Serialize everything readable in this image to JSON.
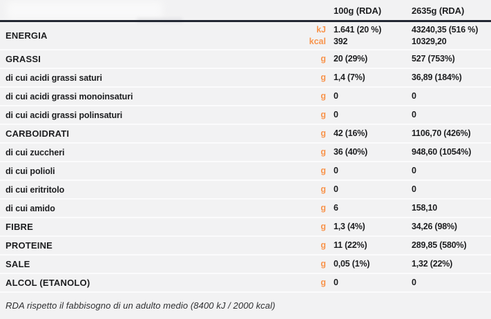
{
  "colors": {
    "background": "#f2f2f3",
    "accent_orange": "#f8954e",
    "header_rule": "#232833",
    "row_separator": "#fbfbfc",
    "text": "#1d1e20"
  },
  "header": {
    "columns": [
      "100g (RDA)",
      "2635g (RDA)"
    ]
  },
  "rows": [
    {
      "label": "ENERGIA",
      "category": true,
      "lines": [
        {
          "unit": "kJ",
          "per100": "1.641 (20 %)",
          "per2635": "43240,35 (516 %)"
        },
        {
          "unit": "kcal",
          "per100": "392",
          "per2635": "10329,20"
        }
      ]
    },
    {
      "label": "GRASSI",
      "category": true,
      "lines": [
        {
          "unit": "g",
          "per100": "20 (29%)",
          "per2635": "527 (753%)"
        }
      ]
    },
    {
      "label": "di cui acidi grassi saturi",
      "category": false,
      "lines": [
        {
          "unit": "g",
          "per100": "1,4 (7%)",
          "per2635": "36,89 (184%)"
        }
      ]
    },
    {
      "label": "di cui acidi grassi monoinsaturi",
      "category": false,
      "lines": [
        {
          "unit": "g",
          "per100": "0",
          "per2635": "0"
        }
      ]
    },
    {
      "label": "di cui acidi grassi polinsaturi",
      "category": false,
      "lines": [
        {
          "unit": "g",
          "per100": "0",
          "per2635": "0"
        }
      ]
    },
    {
      "label": "CARBOIDRATI",
      "category": true,
      "lines": [
        {
          "unit": "g",
          "per100": "42 (16%)",
          "per2635": "1106,70 (426%)"
        }
      ]
    },
    {
      "label": "di cui zuccheri",
      "category": false,
      "lines": [
        {
          "unit": "g",
          "per100": "36 (40%)",
          "per2635": "948,60 (1054%)"
        }
      ]
    },
    {
      "label": "di cui polioli",
      "category": false,
      "lines": [
        {
          "unit": "g",
          "per100": "0",
          "per2635": "0"
        }
      ]
    },
    {
      "label": "di cui eritritolo",
      "category": false,
      "lines": [
        {
          "unit": "g",
          "per100": "0",
          "per2635": "0"
        }
      ]
    },
    {
      "label": "di cui amido",
      "category": false,
      "lines": [
        {
          "unit": "g",
          "per100": "6",
          "per2635": "158,10"
        }
      ]
    },
    {
      "label": "FIBRE",
      "category": true,
      "lines": [
        {
          "unit": "g",
          "per100": "1,3 (4%)",
          "per2635": "34,26 (98%)"
        }
      ]
    },
    {
      "label": "PROTEINE",
      "category": true,
      "lines": [
        {
          "unit": "g",
          "per100": "11 (22%)",
          "per2635": "289,85 (580%)"
        }
      ]
    },
    {
      "label": "SALE",
      "category": true,
      "lines": [
        {
          "unit": "g",
          "per100": "0,05 (1%)",
          "per2635": "1,32 (22%)"
        }
      ]
    },
    {
      "label": "ALCOL (ETANOLO)",
      "category": true,
      "lines": [
        {
          "unit": "g",
          "per100": "0",
          "per2635": "0"
        }
      ]
    }
  ],
  "footnote": "RDA rispetto il fabbisogno di un adulto medio (8400 kJ / 2000 kcal)"
}
